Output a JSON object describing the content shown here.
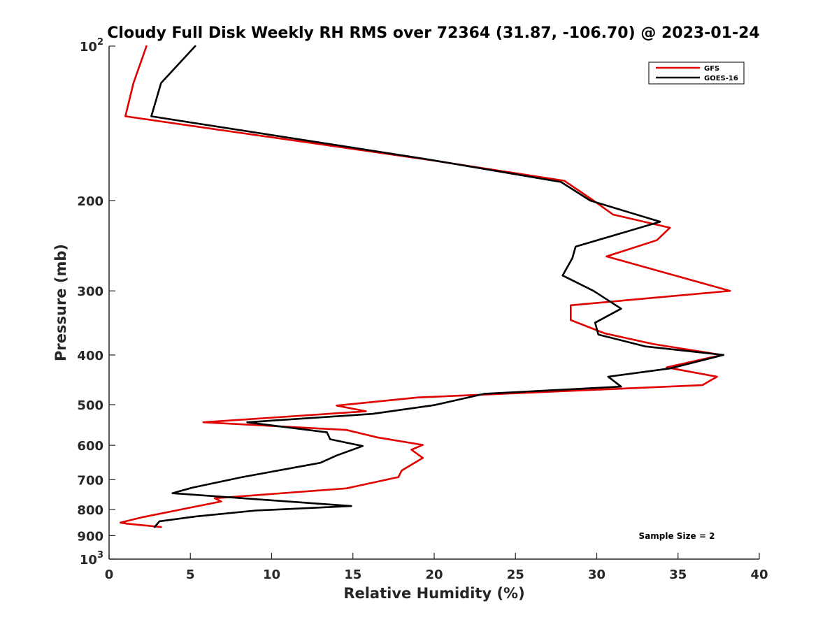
{
  "chart_data": {
    "type": "line",
    "title": "Cloudy Full Disk Weekly RH RMS over 72364 (31.87, -106.70) @ 2023-01-24",
    "xlabel": "Relative Humidity (%)",
    "ylabel": "Pressure (mb)",
    "xlim": [
      0,
      40
    ],
    "ylim": [
      100,
      1000
    ],
    "y_scale": "log",
    "y_reversed": true,
    "grid": false,
    "legend_position": "top-right",
    "x_ticks": [
      0,
      5,
      10,
      15,
      20,
      25,
      30,
      35,
      40
    ],
    "x_tick_labels": [
      "0",
      "5",
      "10",
      "15",
      "20",
      "25",
      "30",
      "35",
      "40"
    ],
    "y_ticks": [
      100,
      200,
      300,
      400,
      500,
      600,
      700,
      800,
      900,
      1000
    ],
    "y_tick_labels": [
      {
        "base": "10",
        "exp": "2"
      },
      {
        "base": "200",
        "exp": ""
      },
      {
        "base": "300",
        "exp": ""
      },
      {
        "base": "400",
        "exp": ""
      },
      {
        "base": "500",
        "exp": ""
      },
      {
        "base": "600",
        "exp": ""
      },
      {
        "base": "700",
        "exp": ""
      },
      {
        "base": "800",
        "exp": ""
      },
      {
        "base": "900",
        "exp": ""
      },
      {
        "base": "10",
        "exp": "3"
      }
    ],
    "annotation": "Sample Size = 2",
    "series": [
      {
        "name": "GFS",
        "color": "#e00000",
        "points": [
          [
            2.3,
            100
          ],
          [
            1.5,
            118
          ],
          [
            1.0,
            137
          ],
          [
            19.9,
            167
          ],
          [
            28.0,
            183
          ],
          [
            29.8,
            200
          ],
          [
            31.0,
            213
          ],
          [
            34.5,
            226
          ],
          [
            33.7,
            239
          ],
          [
            30.6,
            257
          ],
          [
            38.2,
            300
          ],
          [
            28.4,
            320
          ],
          [
            28.4,
            342
          ],
          [
            30.5,
            363
          ],
          [
            33.5,
            381
          ],
          [
            37.7,
            400
          ],
          [
            34.3,
            423
          ],
          [
            37.4,
            441
          ],
          [
            36.5,
            458
          ],
          [
            19.0,
            484
          ],
          [
            14.0,
            502
          ],
          [
            15.8,
            515
          ],
          [
            5.8,
            541
          ],
          [
            14.6,
            560
          ],
          [
            16.5,
            579
          ],
          [
            19.3,
            599
          ],
          [
            18.6,
            612
          ],
          [
            19.3,
            635
          ],
          [
            18.0,
            672
          ],
          [
            17.8,
            692
          ],
          [
            14.6,
            728
          ],
          [
            6.5,
            761
          ],
          [
            6.9,
            772
          ],
          [
            2.1,
            828
          ],
          [
            0.7,
            849
          ],
          [
            1.1,
            853
          ],
          [
            3.2,
            866
          ]
        ]
      },
      {
        "name": "GOES-16",
        "color": "#000000",
        "points": [
          [
            5.3,
            100
          ],
          [
            3.2,
            118
          ],
          [
            2.6,
            137
          ],
          [
            19.5,
            166
          ],
          [
            27.8,
            184
          ],
          [
            29.6,
            200
          ],
          [
            33.9,
            220
          ],
          [
            28.7,
            246
          ],
          [
            28.5,
            259
          ],
          [
            27.9,
            280
          ],
          [
            29.8,
            300
          ],
          [
            31.5,
            325
          ],
          [
            29.9,
            346
          ],
          [
            30.1,
            365
          ],
          [
            33.0,
            385
          ],
          [
            37.8,
            400
          ],
          [
            34.5,
            425
          ],
          [
            30.7,
            441
          ],
          [
            31.5,
            461
          ],
          [
            23.1,
            476
          ],
          [
            20.0,
            501
          ],
          [
            16.2,
            521
          ],
          [
            8.5,
            541
          ],
          [
            13.4,
            566
          ],
          [
            13.6,
            584
          ],
          [
            15.6,
            602
          ],
          [
            14.0,
            628
          ],
          [
            13.0,
            649
          ],
          [
            8.2,
            692
          ],
          [
            5.1,
            726
          ],
          [
            3.9,
            744
          ],
          [
            14.9,
            788
          ],
          [
            9.0,
            804
          ],
          [
            5.3,
            826
          ],
          [
            3.1,
            844
          ],
          [
            2.8,
            866
          ]
        ]
      }
    ]
  }
}
